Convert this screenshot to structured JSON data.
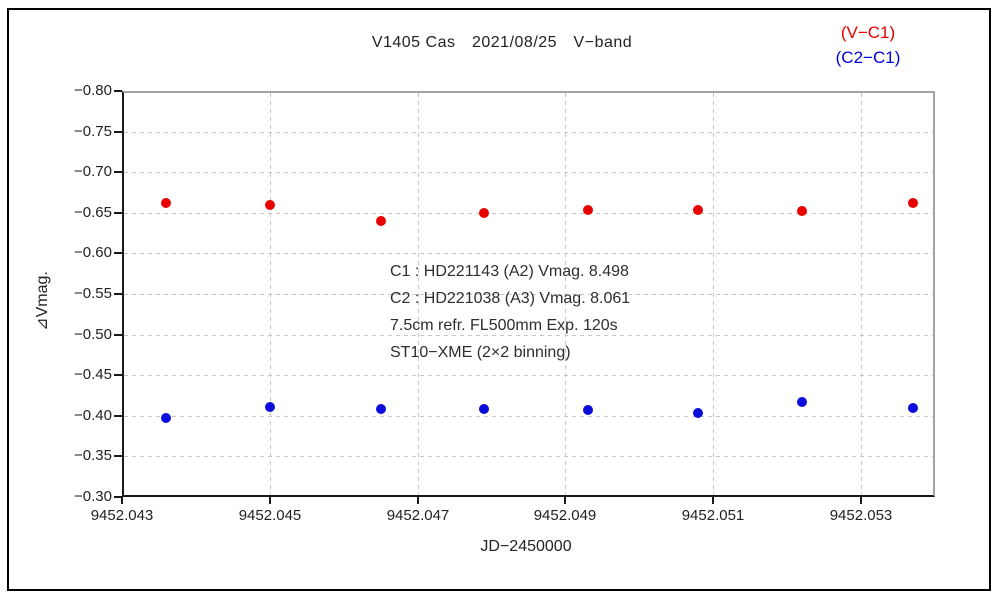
{
  "title": "V1405 Cas　2021/08/25　V−band",
  "legend": [
    {
      "label": "(V−C1)",
      "color": "#e60000"
    },
    {
      "label": "(C2−C1)",
      "color": "#0000dd"
    }
  ],
  "annotation_lines": [
    "C1 : HD221143 (A2) Vmag. 8.498",
    "C2 : HD221038 (A3) Vmag. 8.061",
    "7.5cm refr. FL500mm Exp. 120s",
    "ST10−XME (2×2 binning)"
  ],
  "chart_data": {
    "type": "scatter",
    "title": "V1405 Cas 2021/08/25 V-band",
    "xlabel": "JD−2450000",
    "ylabel": "⊿Vmag.",
    "xlim": [
      9452.043,
      9452.054
    ],
    "ylim": [
      -0.8,
      -0.3
    ],
    "y_axis_inverted_negative_up": true,
    "grid": "dashed",
    "legend_position": "top-right",
    "x_ticks": [
      9452.043,
      9452.045,
      9452.047,
      9452.049,
      9452.051,
      9452.053
    ],
    "x_tick_labels": [
      "9452.043",
      "9452.045",
      "9452.047",
      "9452.049",
      "9452.051",
      "9452.053"
    ],
    "y_ticks": [
      -0.8,
      -0.75,
      -0.7,
      -0.65,
      -0.6,
      -0.55,
      -0.5,
      -0.45,
      -0.4,
      -0.35,
      -0.3
    ],
    "y_tick_labels": [
      "−0.80",
      "−0.75",
      "−0.70",
      "−0.65",
      "−0.60",
      "−0.55",
      "−0.50",
      "−0.45",
      "−0.40",
      "−0.35",
      "−0.30"
    ],
    "series": [
      {
        "name": "V-C1",
        "color": "#e80000",
        "points": [
          [
            9452.0436,
            -0.662
          ],
          [
            9452.045,
            -0.659
          ],
          [
            9452.0465,
            -0.64
          ],
          [
            9452.0479,
            -0.65
          ],
          [
            9452.0493,
            -0.654
          ],
          [
            9452.0508,
            -0.653
          ],
          [
            9452.0522,
            -0.652
          ],
          [
            9452.0537,
            -0.662
          ]
        ]
      },
      {
        "name": "C2-C1",
        "color": "#0b0bdb",
        "points": [
          [
            9452.0436,
            -0.397
          ],
          [
            9452.045,
            -0.411
          ],
          [
            9452.0465,
            -0.408
          ],
          [
            9452.0479,
            -0.408
          ],
          [
            9452.0493,
            -0.407
          ],
          [
            9452.0508,
            -0.403
          ],
          [
            9452.0522,
            -0.417
          ],
          [
            9452.0537,
            -0.409
          ]
        ]
      }
    ]
  }
}
